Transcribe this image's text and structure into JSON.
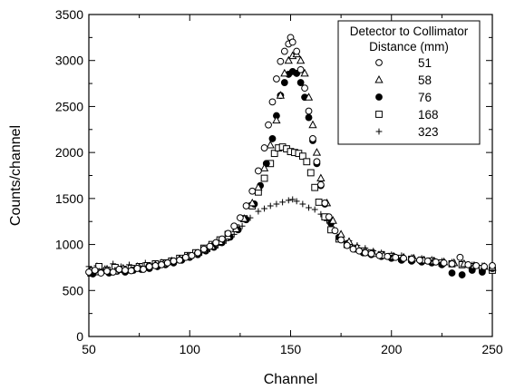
{
  "chart_data": {
    "type": "scatter",
    "xlabel": "Channel",
    "ylabel": "Counts/channel",
    "xlim": [
      50,
      250
    ],
    "ylim": [
      0,
      3500
    ],
    "xticks": [
      50,
      100,
      150,
      200,
      250
    ],
    "yticks": [
      0,
      500,
      1000,
      1500,
      2000,
      2500,
      3000,
      3500
    ],
    "grid": false,
    "legend": {
      "title_line1": "Detector to Collimator",
      "title_line2": "Distance (mm)",
      "placement": "top-right"
    },
    "series": [
      {
        "name": "51",
        "marker": "circle-open",
        "x": [
          50,
          53,
          56,
          59,
          62,
          65,
          68,
          71,
          74,
          77,
          80,
          83,
          86,
          89,
          92,
          95,
          98,
          101,
          104,
          107,
          110,
          113,
          116,
          119,
          122,
          125,
          128,
          131,
          134,
          137,
          139,
          141,
          143,
          145,
          147,
          149,
          150,
          151,
          153,
          155,
          157,
          159,
          161,
          163,
          165,
          167,
          169,
          172,
          175,
          178,
          181,
          184,
          187,
          190,
          194,
          198,
          202,
          206,
          210,
          214,
          218,
          222,
          226,
          230,
          234,
          238,
          242,
          246,
          250
        ],
        "y": [
          700,
          720,
          690,
          710,
          700,
          730,
          720,
          715,
          740,
          730,
          760,
          770,
          780,
          800,
          820,
          830,
          860,
          880,
          910,
          950,
          980,
          1020,
          1060,
          1120,
          1200,
          1290,
          1420,
          1580,
          1800,
          2050,
          2300,
          2550,
          2800,
          2990,
          3100,
          3180,
          3250,
          3200,
          3100,
          2900,
          2700,
          2450,
          2150,
          1900,
          1650,
          1450,
          1300,
          1150,
          1050,
          990,
          950,
          930,
          910,
          900,
          880,
          870,
          860,
          850,
          840,
          830,
          820,
          810,
          800,
          790,
          860,
          780,
          770,
          760,
          770
        ]
      },
      {
        "name": "58",
        "marker": "triangle-open",
        "x": [
          51,
          55,
          59,
          63,
          67,
          71,
          75,
          79,
          83,
          87,
          91,
          95,
          99,
          103,
          107,
          111,
          115,
          119,
          123,
          127,
          131,
          134,
          137,
          140,
          143,
          145,
          147,
          149,
          151,
          153,
          155,
          157,
          159,
          161,
          163,
          165,
          168,
          171,
          175,
          179,
          183,
          187,
          191,
          196,
          201,
          206,
          211,
          216,
          221,
          226,
          231,
          236,
          241,
          246,
          250
        ],
        "y": [
          720,
          700,
          730,
          710,
          740,
          720,
          750,
          760,
          780,
          790,
          820,
          840,
          870,
          900,
          940,
          980,
          1030,
          1090,
          1170,
          1280,
          1450,
          1620,
          1830,
          2080,
          2350,
          2620,
          2860,
          3000,
          3050,
          3070,
          3000,
          2860,
          2600,
          2300,
          2000,
          1720,
          1450,
          1260,
          1110,
          1030,
          970,
          930,
          900,
          880,
          870,
          860,
          850,
          830,
          820,
          810,
          800,
          790,
          770,
          760,
          750
        ]
      },
      {
        "name": "76",
        "marker": "circle-filled",
        "x": [
          52,
          56,
          60,
          64,
          68,
          72,
          76,
          80,
          84,
          88,
          92,
          96,
          100,
          104,
          108,
          112,
          116,
          120,
          124,
          128,
          132,
          135,
          138,
          141,
          143,
          145,
          147,
          149,
          151,
          153,
          155,
          157,
          159,
          161,
          163,
          165,
          167,
          170,
          174,
          178,
          182,
          186,
          190,
          195,
          200,
          205,
          210,
          215,
          220,
          225,
          230,
          235,
          240,
          245,
          250
        ],
        "y": [
          680,
          700,
          690,
          710,
          700,
          720,
          730,
          740,
          760,
          780,
          800,
          830,
          860,
          890,
          930,
          970,
          1020,
          1080,
          1160,
          1270,
          1440,
          1640,
          1880,
          2150,
          2400,
          2620,
          2760,
          2850,
          2880,
          2860,
          2760,
          2600,
          2380,
          2130,
          1880,
          1640,
          1440,
          1230,
          1080,
          1010,
          950,
          910,
          890,
          870,
          850,
          830,
          820,
          810,
          800,
          780,
          690,
          670,
          720,
          700,
          740
        ]
      },
      {
        "name": "168",
        "marker": "square-open",
        "x": [
          51,
          55,
          59,
          63,
          67,
          71,
          75,
          79,
          83,
          87,
          91,
          95,
          99,
          103,
          107,
          111,
          115,
          119,
          123,
          127,
          131,
          134,
          137,
          140,
          142,
          144,
          146,
          148,
          150,
          152,
          154,
          156,
          158,
          160,
          162,
          164,
          167,
          170,
          174,
          178,
          182,
          186,
          190,
          195,
          200,
          205,
          210,
          215,
          220,
          225,
          230,
          235,
          240,
          245,
          250
        ],
        "y": [
          690,
          760,
          720,
          750,
          730,
          740,
          760,
          770,
          790,
          800,
          820,
          850,
          880,
          910,
          960,
          1000,
          1050,
          1110,
          1180,
          1280,
          1420,
          1570,
          1720,
          1880,
          1990,
          2050,
          2060,
          2040,
          2010,
          2000,
          1990,
          1960,
          1900,
          1780,
          1620,
          1460,
          1300,
          1160,
          1060,
          1000,
          960,
          930,
          910,
          890,
          870,
          850,
          840,
          830,
          820,
          800,
          790,
          780,
          760,
          740,
          720
        ]
      },
      {
        "name": "323",
        "marker": "plus",
        "x": [
          50,
          54,
          58,
          62,
          66,
          70,
          74,
          78,
          82,
          86,
          90,
          94,
          98,
          102,
          106,
          110,
          114,
          118,
          122,
          126,
          130,
          134,
          137,
          140,
          143,
          146,
          149,
          151,
          153,
          156,
          159,
          162,
          165,
          168,
          171,
          175,
          179,
          183,
          187,
          191,
          195,
          200,
          205,
          210,
          215,
          220,
          225,
          230,
          235,
          240,
          245,
          250
        ],
        "y": [
          760,
          770,
          740,
          790,
          760,
          780,
          770,
          800,
          790,
          810,
          820,
          840,
          860,
          880,
          910,
          950,
          990,
          1040,
          1110,
          1200,
          1290,
          1360,
          1390,
          1420,
          1440,
          1460,
          1480,
          1490,
          1470,
          1440,
          1400,
          1380,
          1330,
          1260,
          1180,
          1100,
          1040,
          990,
          960,
          930,
          910,
          890,
          880,
          860,
          850,
          840,
          820,
          810,
          800,
          780,
          770,
          760
        ]
      }
    ]
  }
}
